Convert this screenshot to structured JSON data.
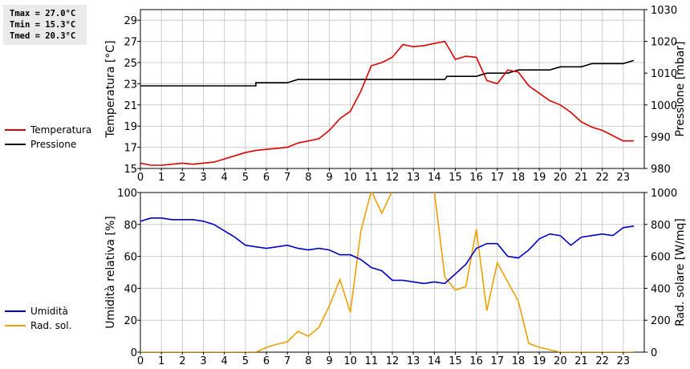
{
  "stats": {
    "tmax": "Tmax = 27.0°C",
    "tmin": "Tmin = 15.3°C",
    "tmed": "Tmed = 20.3°C"
  },
  "chart_data": [
    {
      "type": "line",
      "x_ticks": [
        "0",
        "1",
        "2",
        "3",
        "4",
        "5",
        "6",
        "7",
        "8",
        "9",
        "10",
        "11",
        "12",
        "13",
        "14",
        "15",
        "16",
        "17",
        "18",
        "19",
        "20",
        "21",
        "22",
        "23"
      ],
      "xlim": [
        0,
        24
      ],
      "ylabel_left": "Temperatura [°C]",
      "ylabel_right": "Pressione [mbar]",
      "ylim_left": [
        15,
        30
      ],
      "yticks_left": [
        "15",
        "17",
        "19",
        "21",
        "23",
        "25",
        "27",
        "29"
      ],
      "ylim_right": [
        980,
        1030
      ],
      "yticks_right": [
        "980",
        "990",
        "1000",
        "1010",
        "1020",
        "1030"
      ],
      "legend": [
        {
          "name": "Temperatura",
          "color": "#dd0000"
        },
        {
          "name": "Pressione",
          "color": "#000000"
        }
      ],
      "series": [
        {
          "name": "Temperatura",
          "color": "#dd0000",
          "axis": "left",
          "x": [
            0,
            0.5,
            1,
            1.5,
            2,
            2.5,
            3,
            3.5,
            4,
            4.5,
            5,
            5.5,
            6,
            6.5,
            7,
            7.5,
            8,
            8.5,
            9,
            9.5,
            10,
            10.5,
            11,
            11.5,
            12,
            12.5,
            13,
            13.5,
            14,
            14.5,
            15,
            15.5,
            16,
            16.5,
            17,
            17.5,
            18,
            18.5,
            19,
            19.5,
            20,
            20.5,
            21,
            21.5,
            22,
            22.5,
            23,
            23.5
          ],
          "y": [
            15.5,
            15.3,
            15.3,
            15.4,
            15.5,
            15.4,
            15.5,
            15.6,
            15.9,
            16.2,
            16.5,
            16.7,
            16.8,
            16.9,
            17.0,
            17.4,
            17.6,
            17.8,
            18.6,
            19.7,
            20.4,
            22.3,
            24.7,
            25.0,
            25.5,
            26.7,
            26.5,
            26.6,
            26.8,
            27.0,
            25.3,
            25.6,
            25.5,
            23.3,
            23.0,
            24.3,
            24.1,
            22.8,
            22.1,
            21.4,
            21.0,
            20.3,
            19.4,
            18.9,
            18.6,
            18.1,
            17.6,
            17.6
          ]
        },
        {
          "name": "Pressione",
          "color": "#000000",
          "axis": "right",
          "x": [
            0,
            5.5,
            5.5,
            7,
            7.5,
            14.5,
            14.6,
            16,
            16.5,
            17.5,
            18,
            19.5,
            20,
            21,
            21.5,
            23,
            23.5
          ],
          "y": [
            1006,
            1006,
            1007,
            1007,
            1008,
            1008,
            1009,
            1009,
            1010,
            1010,
            1011,
            1011,
            1012,
            1012,
            1013,
            1013,
            1014
          ]
        }
      ]
    },
    {
      "type": "line",
      "x_ticks": [
        "0",
        "1",
        "2",
        "3",
        "4",
        "5",
        "6",
        "7",
        "8",
        "9",
        "10",
        "11",
        "12",
        "13",
        "14",
        "15",
        "16",
        "17",
        "18",
        "19",
        "20",
        "21",
        "22",
        "23"
      ],
      "xlim": [
        0,
        24
      ],
      "ylabel_left": "Umidità relativa [%]",
      "ylabel_right": "Rad. solare [W/mq]",
      "ylim_left": [
        0,
        100
      ],
      "yticks_left": [
        "0",
        "20",
        "40",
        "60",
        "80",
        "100"
      ],
      "ylim_right": [
        0,
        1000
      ],
      "yticks_right": [
        "0",
        "200",
        "400",
        "600",
        "800",
        "1000"
      ],
      "legend": [
        {
          "name": "Umidità",
          "color": "#0000cc"
        },
        {
          "name": "Rad. sol.",
          "color": "#f0a000"
        }
      ],
      "series": [
        {
          "name": "Umidità",
          "color": "#0000cc",
          "axis": "left",
          "x": [
            0,
            0.5,
            1,
            1.5,
            2,
            2.5,
            3,
            3.5,
            4,
            4.5,
            5,
            5.5,
            6,
            6.5,
            7,
            7.5,
            8,
            8.5,
            9,
            9.5,
            10,
            10.5,
            11,
            11.5,
            12,
            12.5,
            13,
            13.5,
            14,
            14.5,
            15,
            15.5,
            16,
            16.5,
            17,
            17.5,
            18,
            18.5,
            19,
            19.5,
            20,
            20.5,
            21,
            21.5,
            22,
            22.5,
            23,
            23.5
          ],
          "y": [
            82,
            84,
            84,
            83,
            83,
            83,
            82,
            80,
            76,
            72,
            67,
            66,
            65,
            66,
            67,
            65,
            64,
            65,
            64,
            61,
            61,
            58,
            53,
            51,
            45,
            45,
            44,
            43,
            44,
            43,
            49,
            55,
            65,
            68,
            68,
            60,
            59,
            64,
            71,
            74,
            73,
            67,
            72,
            73,
            74,
            73,
            78,
            79
          ]
        },
        {
          "name": "Rad. sol.",
          "color": "#f0a000",
          "axis": "right",
          "x": [
            0,
            0.5,
            1,
            1.5,
            2,
            2.5,
            3,
            3.5,
            4,
            4.5,
            5,
            5.5,
            6,
            6.5,
            7,
            7.5,
            8,
            8.5,
            9,
            9.5,
            10,
            10.5,
            11,
            11.5,
            12,
            12.5,
            13,
            13.5,
            14,
            14.5,
            15,
            15.5,
            16,
            16.5,
            17,
            17.5,
            18,
            18.5,
            19,
            19.5,
            20,
            20.5,
            21,
            21.5,
            22,
            22.5,
            23,
            23.5
          ],
          "y": [
            0,
            0,
            0,
            0,
            0,
            0,
            0,
            0,
            0,
            0,
            0,
            0,
            30,
            50,
            65,
            130,
            100,
            155,
            290,
            455,
            250,
            760,
            1010,
            870,
            1010,
            1040,
            1040,
            1040,
            1010,
            470,
            390,
            410,
            770,
            260,
            560,
            440,
            320,
            55,
            30,
            15,
            0,
            0,
            0,
            0,
            0,
            0,
            0,
            0
          ]
        }
      ]
    }
  ]
}
